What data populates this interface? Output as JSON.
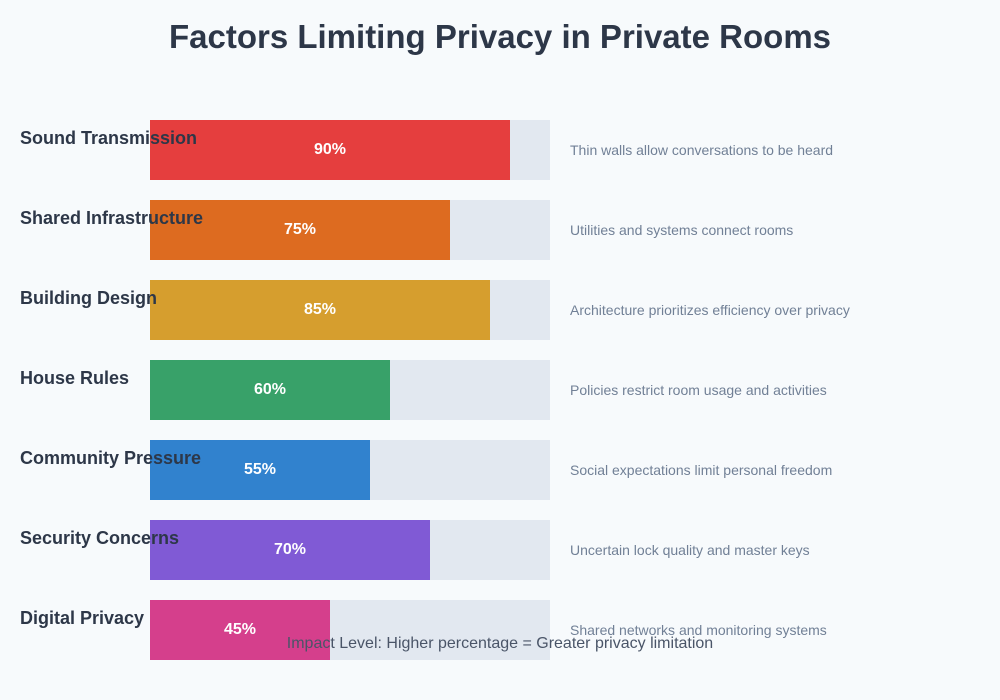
{
  "chart_data": {
    "type": "bar",
    "orientation": "horizontal",
    "title": "Factors Limiting Privacy in Private Rooms",
    "xlim": [
      0,
      100
    ],
    "unit": "%",
    "categories": [
      "Sound Transmission",
      "Shared Infrastructure",
      "Building Design",
      "House Rules",
      "Community Pressure",
      "Security Concerns",
      "Digital Privacy"
    ],
    "values": [
      90,
      75,
      85,
      60,
      55,
      70,
      45
    ],
    "value_labels": [
      "90%",
      "75%",
      "85%",
      "60%",
      "55%",
      "70%",
      "45%"
    ],
    "colors": [
      "#e53e3e",
      "#dd6b20",
      "#d69e2e",
      "#38a169",
      "#3182ce",
      "#805ad5",
      "#d53f8c"
    ],
    "descriptions": [
      "Thin walls allow conversations to be heard",
      "Utilities and systems connect rooms",
      "Architecture prioritizes efficiency over privacy",
      "Policies restrict room usage and activities",
      "Social expectations limit personal freedom",
      "Uncertain lock quality and master keys",
      "Shared networks and monitoring systems"
    ],
    "track_color": "#e2e8f0",
    "footnote": "Impact Level: Higher percentage = Greater privacy limitation",
    "grid": false,
    "legend": "none"
  }
}
